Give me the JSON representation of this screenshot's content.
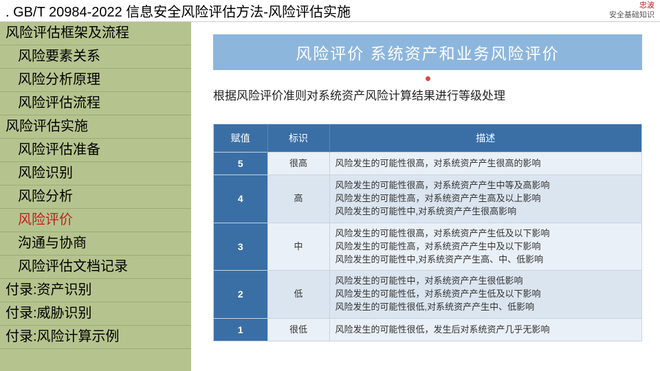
{
  "header": {
    "title": ".  GB/T 20984-2022 信息安全风险评估方法-风险评估实施",
    "right_top": "忠波",
    "right_bottom": "安全基础知识"
  },
  "sidebar": {
    "items": [
      {
        "label": "风险评估框架及流程",
        "indent": false,
        "active": false
      },
      {
        "label": "风险要素关系",
        "indent": true,
        "active": false
      },
      {
        "label": "风险分析原理",
        "indent": true,
        "active": false
      },
      {
        "label": "风险评估流程",
        "indent": true,
        "active": false
      },
      {
        "label": "风险评估实施",
        "indent": false,
        "active": false
      },
      {
        "label": "风险评估准备",
        "indent": true,
        "active": false
      },
      {
        "label": "风险识别",
        "indent": true,
        "active": false
      },
      {
        "label": "风险分析",
        "indent": true,
        "active": false
      },
      {
        "label": "风险评价",
        "indent": true,
        "active": true
      },
      {
        "label": "沟通与协商",
        "indent": true,
        "active": false
      },
      {
        "label": "风险评估文档记录",
        "indent": true,
        "active": false
      },
      {
        "label": "付录:资产识别",
        "indent": false,
        "active": false
      },
      {
        "label": "付录:威胁识别",
        "indent": false,
        "active": false
      },
      {
        "label": "付录:风险计算示例",
        "indent": false,
        "active": false
      }
    ]
  },
  "main": {
    "banner": "风险评价  系统资产和业务风险评价",
    "subtitle": "根据风险评价准则对系统资产风险计算结果进行等级处理",
    "table": {
      "headers": [
        "赋值",
        "标识",
        "描述"
      ],
      "rows": [
        {
          "val": "5",
          "tag": "很高",
          "desc": "风险发生的可能性很高，对系统资产产生很高的影响"
        },
        {
          "val": "4",
          "tag": "高",
          "desc": "风险发生的可能性很高，对系统资产产生中等及高影响\n风险发生的可能性高，对系统资产产生高及以上影响\n风险发生的可能性中,对系统资产产生很高影响"
        },
        {
          "val": "3",
          "tag": "中",
          "desc": "风险发生的可能性很高，对系统资产产生低及以下影响\n风险发生的可能性高，对系统资产产生中及以下影响\n风险发生的可能性中,对系统资产产生高、中、低影响"
        },
        {
          "val": "2",
          "tag": "低",
          "desc": "风险发生的可能性中，对系统资产产生很低影响\n风险发生的可能性低，对系统资产产生低及以下影响\n风险发生的可能性很低,对系统资产产生中、低影响"
        },
        {
          "val": "1",
          "tag": "很低",
          "desc": "风险发生的可能性很低，发生后对系统资产几乎无影响"
        }
      ]
    }
  },
  "colors": {
    "sidebar_bg": "#b5c48e",
    "banner_bg": "#8db6dd",
    "table_header_bg": "#3a6fa6",
    "row_odd_bg": "#eaf0f7",
    "row_even_bg": "#dbe5f0",
    "active_text": "#c41e1e"
  }
}
